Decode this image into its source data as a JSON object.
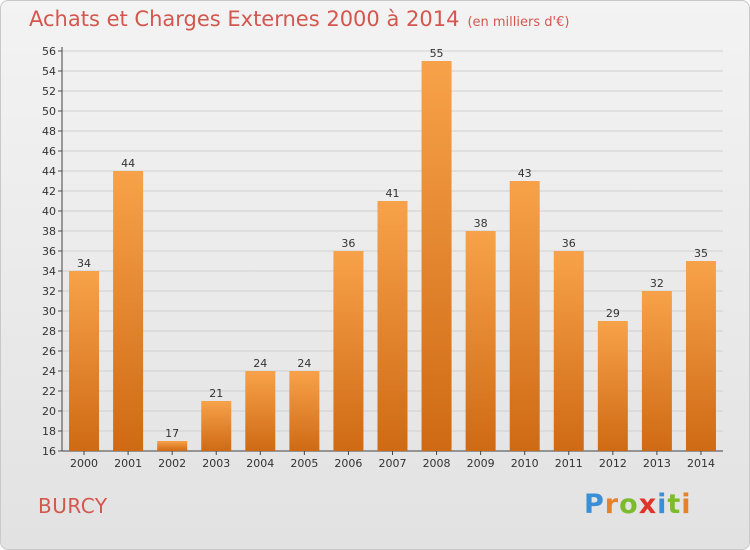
{
  "title": "Achats et Charges Externes 2000 à 2014",
  "unit_label": "(en milliers d'€)",
  "commune": "BURCY",
  "logo": {
    "letters": [
      "P",
      "r",
      "o",
      "x",
      "i",
      "t",
      "i"
    ],
    "colors": [
      "#3a8fd6",
      "#e8822a",
      "#7dbb2e",
      "#e0342a",
      "#3a8fd6",
      "#7dbb2e",
      "#e8822a"
    ]
  },
  "colors": {
    "bar_top": "#f7a24a",
    "bar_bottom": "#cf6a14",
    "title": "#d4574f"
  },
  "chart_data": {
    "type": "bar",
    "categories": [
      "2000",
      "2001",
      "2002",
      "2003",
      "2004",
      "2005",
      "2006",
      "2007",
      "2008",
      "2009",
      "2010",
      "2011",
      "2012",
      "2013",
      "2014"
    ],
    "values": [
      34,
      44,
      17,
      21,
      24,
      24,
      36,
      41,
      55,
      38,
      43,
      36,
      29,
      32,
      35
    ],
    "ylim": [
      16,
      56
    ],
    "yticks": [
      16,
      18,
      20,
      22,
      24,
      26,
      28,
      30,
      32,
      34,
      36,
      38,
      40,
      42,
      44,
      46,
      48,
      50,
      52,
      54,
      56
    ],
    "grid": true,
    "data_labels": true
  }
}
